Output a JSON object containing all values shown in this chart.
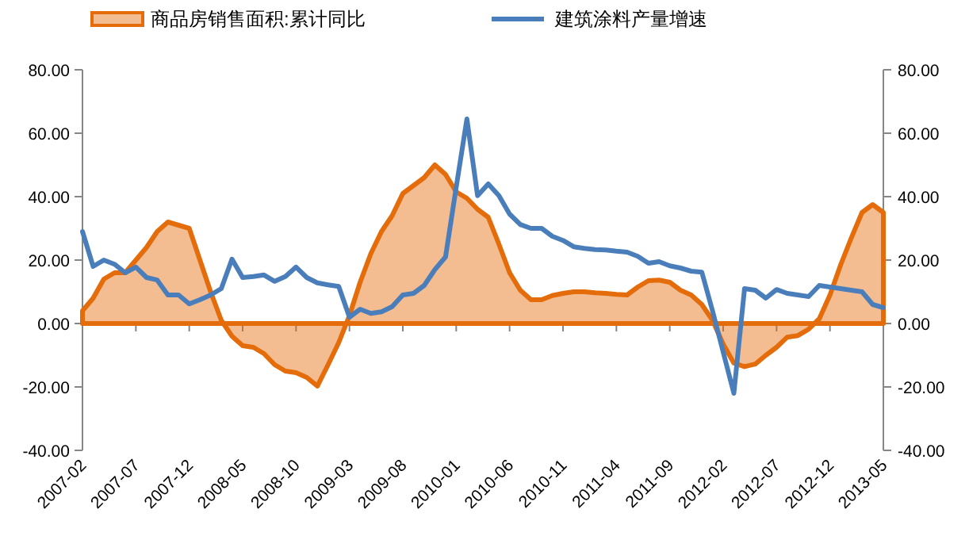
{
  "chart_data": {
    "type": "line",
    "legend": "top",
    "categories": [
      "2007-02",
      null,
      null,
      null,
      null,
      "2007-07",
      null,
      null,
      null,
      null,
      "2007-12",
      null,
      null,
      null,
      null,
      "2008-05",
      null,
      null,
      null,
      null,
      "2008-10",
      null,
      null,
      null,
      null,
      "2009-03",
      null,
      null,
      null,
      null,
      "2009-08",
      null,
      null,
      null,
      null,
      "2010-01",
      null,
      null,
      null,
      null,
      "2010-06",
      null,
      null,
      null,
      null,
      "2010-11",
      null,
      null,
      null,
      null,
      "2011-04",
      null,
      null,
      null,
      null,
      "2011-09",
      null,
      null,
      null,
      null,
      "2012-02",
      null,
      null,
      null,
      null,
      "2012-07",
      null,
      null,
      null,
      null,
      "2012-12",
      null,
      null,
      null,
      null,
      "2013-05"
    ],
    "series": [
      {
        "name": "商品房销售面积:累计同比",
        "type": "area",
        "color": "#e46c0a",
        "values": [
          4,
          8,
          14,
          16,
          16,
          20,
          24,
          29,
          32,
          31,
          30,
          20,
          10,
          1,
          -4,
          -7,
          -7.5,
          -9.5,
          -13,
          -15,
          -15.5,
          -17,
          -19.7,
          -13,
          -6,
          2.5,
          13,
          22,
          29,
          34,
          41,
          43.5,
          46,
          50,
          47,
          41.5,
          39.5,
          36,
          33.5,
          25,
          16,
          10.5,
          7.5,
          7.5,
          8.8,
          9.5,
          10,
          10,
          9.7,
          9.5,
          9.2,
          9,
          11.5,
          13.5,
          13.7,
          13,
          10.5,
          9,
          6,
          1,
          -6.5,
          -12.5,
          -13.6,
          -12.8,
          -10,
          -7.5,
          -4.3,
          -3.8,
          -1.8,
          1.5,
          9,
          18.5,
          27,
          35,
          37.5,
          35
        ]
      },
      {
        "name": "建筑涂料产量增速",
        "color": "#4a7ebb",
        "values": [
          29,
          18,
          20,
          18.7,
          16,
          17.8,
          14.5,
          13.7,
          9,
          9,
          6.2,
          7.5,
          9,
          11,
          20.3,
          14.5,
          14.8,
          15.3,
          13.3,
          14.8,
          17.8,
          14.5,
          12.8,
          12.2,
          11.7,
          2,
          4.5,
          3.2,
          3.7,
          5.3,
          9,
          9.5,
          12,
          17,
          21,
          43,
          64.5,
          40.3,
          44,
          40.3,
          34.5,
          31.2,
          30,
          30,
          27.5,
          26.2,
          24.2,
          23.7,
          23.3,
          23.2,
          22.8,
          22.5,
          21.2,
          19,
          19.5,
          18.2,
          17.5,
          16.5,
          16.2,
          4,
          -9,
          -22,
          11,
          10.5,
          8,
          10.7,
          9.5,
          9,
          8.5,
          12,
          11.5,
          11,
          10.5,
          10,
          6,
          5
        ]
      }
    ],
    "ylim": [
      -40,
      80
    ],
    "yticks": [
      {
        "value": -40,
        "label": "-40.00"
      },
      {
        "value": -20,
        "label": "-20.00"
      },
      {
        "value": 0,
        "label": "0.00"
      },
      {
        "value": 20,
        "label": "20.00"
      },
      {
        "value": 40,
        "label": "40.00"
      },
      {
        "value": 60,
        "label": "60.00"
      },
      {
        "value": 80,
        "label": "80.00"
      }
    ],
    "y2lim": [
      -40,
      80
    ],
    "y2ticks": [
      {
        "value": -40,
        "label": "-40.00"
      },
      {
        "value": -20,
        "label": "-20.00"
      },
      {
        "value": 0,
        "label": "0.00"
      },
      {
        "value": 20,
        "label": "20.00"
      },
      {
        "value": 40,
        "label": "40.00"
      },
      {
        "value": 60,
        "label": "60.00"
      },
      {
        "value": 80,
        "label": "80.00"
      }
    ]
  }
}
